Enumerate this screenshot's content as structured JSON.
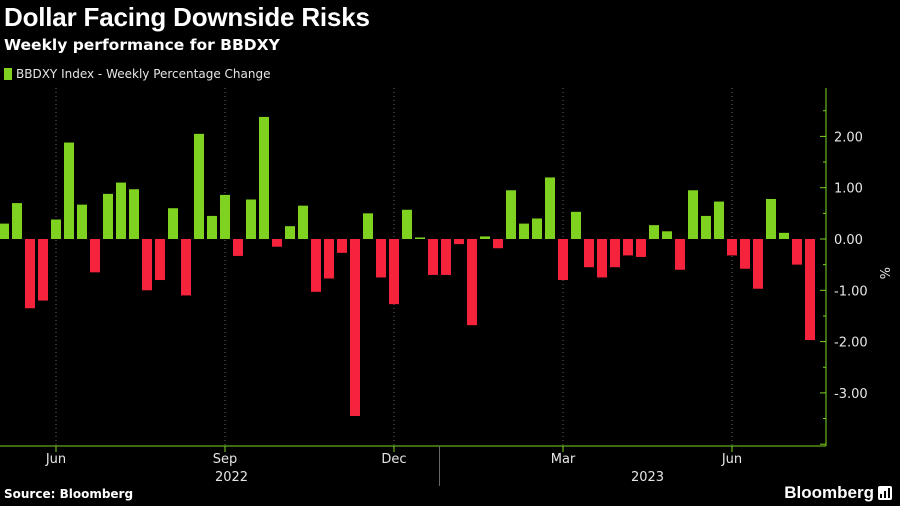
{
  "title": "Dollar Facing Downside Risks",
  "subtitle": "Weekly performance for BBDXY",
  "source": "Source: Bloomberg",
  "brand": "Bloomberg",
  "colors": {
    "positive": "#7fd320",
    "negative": "#f5233c",
    "axis": "#7fd320",
    "grid": "#666666",
    "background": "#000000"
  },
  "chart_data": {
    "type": "bar",
    "title": "Dollar Facing Downside Risks",
    "subtitle": "Weekly performance for BBDXY",
    "series": [
      {
        "name": "BBDXY Index - Weekly Percentage Change",
        "values": [
          0.3,
          0.7,
          -1.35,
          -1.2,
          0.38,
          1.88,
          0.67,
          -0.65,
          0.88,
          1.1,
          0.97,
          -1.0,
          -0.8,
          0.6,
          -1.1,
          2.05,
          0.45,
          0.86,
          -0.33,
          0.77,
          2.38,
          -0.15,
          0.25,
          0.65,
          -1.03,
          -0.77,
          -0.27,
          -3.45,
          0.5,
          -0.75,
          -1.27,
          0.57,
          0.03,
          -0.7,
          -0.7,
          -0.1,
          -1.68,
          0.05,
          -0.18,
          0.95,
          0.3,
          0.4,
          1.2,
          -0.8,
          0.53,
          -0.55,
          -0.75,
          -0.55,
          -0.32,
          -0.35,
          0.27,
          0.15,
          -0.6,
          0.95,
          0.45,
          0.73,
          -0.32,
          -0.58,
          -0.97,
          0.78,
          0.12,
          -0.5,
          -1.97
        ]
      }
    ],
    "x_month_labels": [
      "Jun",
      "Sep",
      "Dec",
      "Mar",
      "Jun"
    ],
    "x_month_bar_index": [
      4,
      17,
      30,
      43,
      56
    ],
    "x_year_labels": [
      "2022",
      "2023"
    ],
    "x_year_bar_index": [
      17.5,
      49.5
    ],
    "year_divider_bar_index": 33,
    "ylabel": "%",
    "yticks": [
      2.0,
      1.0,
      0.0,
      -1.0,
      -2.0,
      -3.0
    ],
    "ytick_labels": [
      "2.00",
      "1.00",
      "0.00",
      "-1.00",
      "-2.00",
      "-3.00"
    ],
    "ylim": [
      -4.0,
      3.0
    ],
    "grid": "vertical dotted lines at month labels",
    "legend": "top-left",
    "y_axis_side": "right"
  }
}
